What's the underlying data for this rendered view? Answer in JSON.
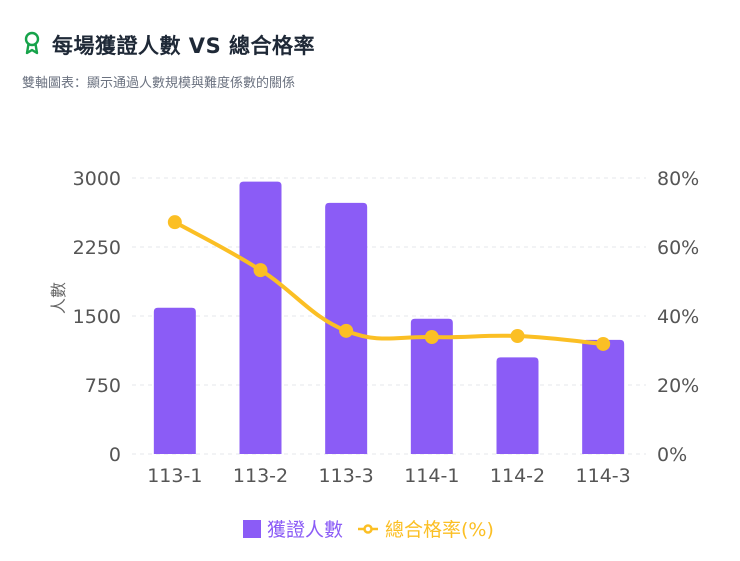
{
  "header": {
    "icon": "award-ribbon-icon",
    "title": "每場獲證人數 VS 總合格率",
    "subtitle": "雙軸圖表：顯示通過人數規模與難度係數的關係",
    "icon_color": "#16a34a"
  },
  "legend": {
    "bar_label": "獲證人數",
    "line_label": "總合格率(%)"
  },
  "colors": {
    "bar": "#8b5cf6",
    "line": "#fbbf24",
    "grid": "#e5e7eb"
  },
  "chart_data": {
    "type": "bar+line",
    "title": "每場獲證人數 VS 總合格率",
    "subtitle": "雙軸圖表：顯示通過人數規模與難度係數的關係",
    "categories": [
      "113-1",
      "113-2",
      "113-3",
      "114-1",
      "114-2",
      "114-3"
    ],
    "series": [
      {
        "name": "獲證人數",
        "type": "bar",
        "axis": "left",
        "values": [
          1590,
          2960,
          2730,
          1470,
          1050,
          1240
        ]
      },
      {
        "name": "總合格率(%)",
        "type": "line",
        "axis": "right",
        "values": [
          67.2,
          53.3,
          35.7,
          33.9,
          34.2,
          31.9
        ]
      }
    ],
    "xlabel": "",
    "ylabel": "人數",
    "ylim": [
      0,
      3000
    ],
    "yticks": [
      "0",
      "750",
      "1500",
      "2250",
      "3000"
    ],
    "y2lim": [
      0,
      80
    ],
    "y2ticks": [
      "0%",
      "20%",
      "40%",
      "60%",
      "80%"
    ],
    "grid": true,
    "legend_position": "bottom"
  }
}
